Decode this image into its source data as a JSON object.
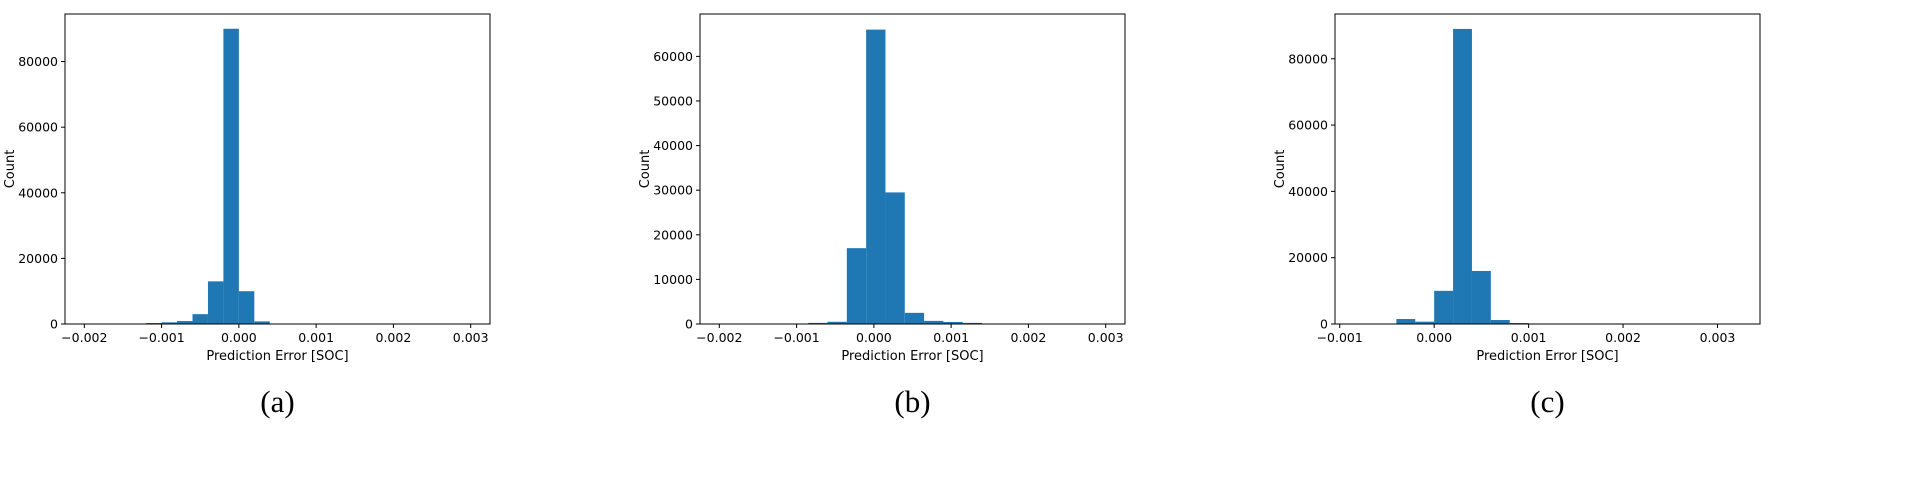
{
  "style": {
    "bar_color": "#1f77b4",
    "frame_color": "#000000",
    "tick_color": "#000000"
  },
  "chart_data": [
    {
      "type": "bar",
      "subtype": "histogram",
      "caption": "(a)",
      "title": "",
      "xlabel": "Prediction Error [SOC]",
      "ylabel": "Count",
      "xlim": [
        -0.00225,
        0.00325
      ],
      "ylim": [
        0,
        94500
      ],
      "grid": false,
      "legend": "none",
      "bin_edges": [
        -0.0012,
        -0.001,
        -0.0008,
        -0.0006,
        -0.0004,
        -0.0002,
        0.0,
        0.0002,
        0.0004
      ],
      "counts": [
        300,
        500,
        900,
        3000,
        13000,
        90000,
        10000,
        800
      ],
      "xticks": [
        -0.002,
        -0.001,
        0.0,
        0.001,
        0.002,
        0.003
      ],
      "xtick_labels": [
        "−0.002",
        "−0.001",
        "0.000",
        "0.001",
        "0.002",
        "0.003"
      ],
      "yticks": [
        0,
        20000,
        40000,
        60000,
        80000
      ],
      "ytick_labels": [
        "0",
        "20000",
        "40000",
        "60000",
        "80000"
      ]
    },
    {
      "type": "bar",
      "subtype": "histogram",
      "caption": "(b)",
      "title": "",
      "xlabel": "Prediction Error [SOC]",
      "ylabel": "Count",
      "xlim": [
        -0.00225,
        0.00325
      ],
      "ylim": [
        0,
        69500
      ],
      "grid": false,
      "legend": "none",
      "bin_edges": [
        -0.00085,
        -0.0006,
        -0.00035,
        -0.0001,
        0.00015,
        0.0004,
        0.00065,
        0.0009,
        0.00115,
        0.0014
      ],
      "counts": [
        250,
        500,
        17000,
        66000,
        29500,
        2500,
        700,
        450,
        250
      ],
      "xticks": [
        -0.002,
        -0.001,
        0.0,
        0.001,
        0.002,
        0.003
      ],
      "xtick_labels": [
        "−0.002",
        "−0.001",
        "0.000",
        "0.001",
        "0.002",
        "0.003"
      ],
      "yticks": [
        0,
        10000,
        20000,
        30000,
        40000,
        50000,
        60000
      ],
      "ytick_labels": [
        "0",
        "10000",
        "20000",
        "30000",
        "40000",
        "50000",
        "60000"
      ]
    },
    {
      "type": "bar",
      "subtype": "histogram",
      "caption": "(c)",
      "title": "",
      "xlabel": "Prediction Error [SOC]",
      "ylabel": "Count",
      "xlim": [
        -0.00105,
        0.00345
      ],
      "ylim": [
        0,
        93500
      ],
      "grid": false,
      "legend": "none",
      "bin_edges": [
        -0.0004,
        -0.0002,
        0.0,
        0.0002,
        0.0004,
        0.0006,
        0.0008,
        0.001
      ],
      "counts": [
        1500,
        700,
        10000,
        89000,
        16000,
        1200,
        300
      ],
      "xticks": [
        -0.001,
        0.0,
        0.001,
        0.002,
        0.003
      ],
      "xtick_labels": [
        "−0.001",
        "0.000",
        "0.001",
        "0.002",
        "0.003"
      ],
      "yticks": [
        0,
        20000,
        40000,
        60000,
        80000
      ],
      "ytick_labels": [
        "0",
        "20000",
        "40000",
        "60000",
        "80000"
      ]
    }
  ]
}
